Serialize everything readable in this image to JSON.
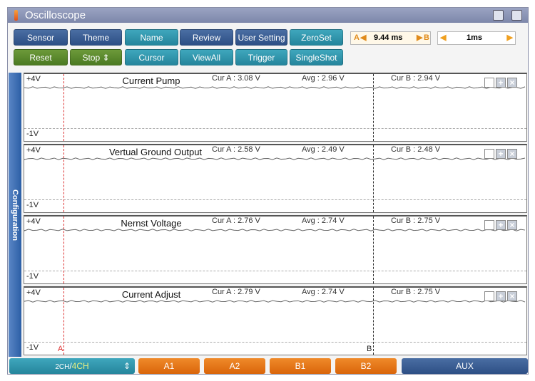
{
  "window": {
    "title": "Oscilloscope"
  },
  "toolbar": {
    "row1": [
      "Sensor",
      "Theme",
      "Name",
      "Review",
      "User Setting",
      "ZeroSet"
    ],
    "row2": [
      "Reset",
      "Stop",
      "Cursor",
      "ViewAll",
      "Trigger",
      "SingleShot"
    ]
  },
  "cursor_time": {
    "a_label": "A",
    "value": "9.44 ms",
    "b_label": "B"
  },
  "time_div": {
    "value": "1ms"
  },
  "sidebar": {
    "label": "Configuration"
  },
  "channels": [
    {
      "name": "Current Pump",
      "top": "+4V",
      "bottom": "-1V",
      "cur_a": "Cur A : 3.08 V",
      "avg": "Avg : 2.96 V",
      "cur_b": "Cur B : 2.94 V"
    },
    {
      "name": "Vertual Ground Output",
      "top": "+4V",
      "bottom": "-1V",
      "cur_a": "Cur A : 2.58 V",
      "avg": "Avg : 2.49 V",
      "cur_b": "Cur B : 2.48 V"
    },
    {
      "name": "Nernst Voltage",
      "top": "+4V",
      "bottom": "-1V",
      "cur_a": "Cur A : 2.76 V",
      "avg": "Avg : 2.74 V",
      "cur_b": "Cur B : 2.75 V"
    },
    {
      "name": "Current Adjust",
      "top": "+4V",
      "bottom": "-1V",
      "cur_a": "Cur A : 2.79 V",
      "avg": "Avg : 2.74 V",
      "cur_b": "Cur B : 2.75 V"
    }
  ],
  "markers": {
    "a": "A",
    "b": "B"
  },
  "bottom": {
    "mode_a": "2CH",
    "mode_sep": "/",
    "mode_b": "4CH",
    "a1": "A1",
    "a2": "A2",
    "b1": "B1",
    "b2": "B2",
    "aux": "AUX"
  },
  "colors": {
    "navy": "#2d4f85",
    "teal": "#25859c",
    "green": "#4b7a22",
    "orange": "#e0701a",
    "cursor_a": "#d33333"
  }
}
